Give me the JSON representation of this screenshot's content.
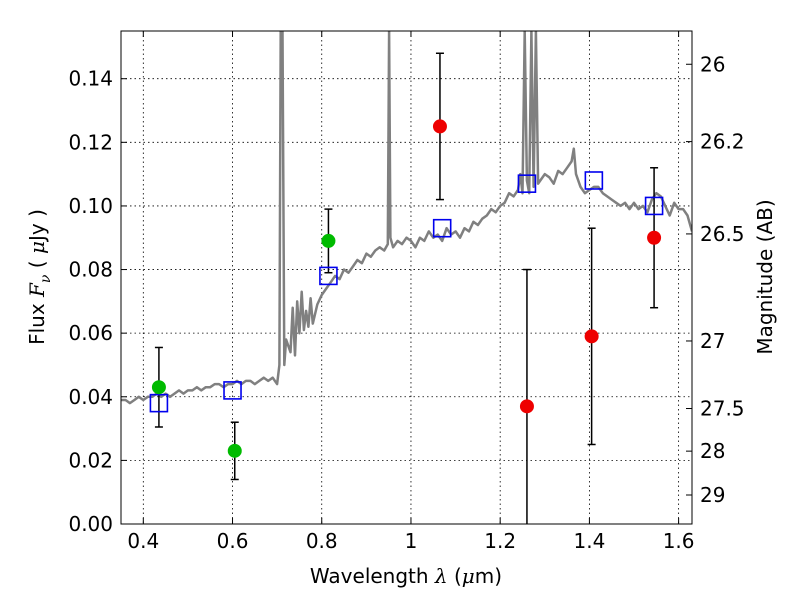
{
  "chart_data": {
    "type": "scatter",
    "title": "",
    "xlabel": "Wavelength  λ (μm)",
    "ylabel": "Flux  F_ν  ( μJy )",
    "ylabel_parts": {
      "pre": "Flux  ",
      "var": "F",
      "sub": "ν",
      "mid": "  (  ",
      "unit_var": "μ",
      "post": "Jy )"
    },
    "xlabel_parts": {
      "pre": "Wavelength  ",
      "var": "λ",
      "mid": " (",
      "unit_var": "μ",
      "post": "m)"
    },
    "ylabel_right": "Magnitude (AB)",
    "xlim": [
      0.35,
      1.63
    ],
    "ylim": [
      0.0,
      0.155
    ],
    "grid": true,
    "x_ticks": [
      {
        "value": 0.4,
        "label": "0.4"
      },
      {
        "value": 0.6,
        "label": "0.6"
      },
      {
        "value": 0.8,
        "label": "0.8"
      },
      {
        "value": 1.0,
        "label": "1"
      },
      {
        "value": 1.2,
        "label": "1.2"
      },
      {
        "value": 1.4,
        "label": "1.4"
      },
      {
        "value": 1.6,
        "label": "1.6"
      }
    ],
    "y_ticks": [
      {
        "value": 0.0,
        "label": "0.00"
      },
      {
        "value": 0.02,
        "label": "0.02"
      },
      {
        "value": 0.04,
        "label": "0.04"
      },
      {
        "value": 0.06,
        "label": "0.06"
      },
      {
        "value": 0.08,
        "label": "0.08"
      },
      {
        "value": 0.1,
        "label": "0.10"
      },
      {
        "value": 0.12,
        "label": "0.12"
      },
      {
        "value": 0.14,
        "label": "0.14"
      }
    ],
    "right_ticks": [
      {
        "value": 26.0,
        "label": "26"
      },
      {
        "value": 26.2,
        "label": "26.2"
      },
      {
        "value": 26.5,
        "label": "26.5"
      },
      {
        "value": 27.0,
        "label": "27"
      },
      {
        "value": 27.5,
        "label": "27.5"
      },
      {
        "value": 28.0,
        "label": "28"
      },
      {
        "value": 29.0,
        "label": "29"
      }
    ],
    "ab_zeropoint_ujy_mag": 23.9,
    "colors": {
      "model": "#808080",
      "green": "#00bb00",
      "red": "#ee0000",
      "blue": "#0000ee",
      "errorbar": "#000000"
    },
    "model_spectrum": {
      "x": [
        0.35,
        0.36,
        0.37,
        0.38,
        0.39,
        0.4,
        0.41,
        0.42,
        0.43,
        0.44,
        0.45,
        0.46,
        0.47,
        0.48,
        0.49,
        0.5,
        0.51,
        0.52,
        0.53,
        0.54,
        0.55,
        0.56,
        0.57,
        0.58,
        0.59,
        0.6,
        0.61,
        0.62,
        0.63,
        0.64,
        0.65,
        0.66,
        0.67,
        0.68,
        0.69,
        0.7,
        0.705,
        0.708,
        0.712,
        0.716,
        0.72,
        0.73,
        0.735,
        0.74,
        0.745,
        0.75,
        0.755,
        0.76,
        0.765,
        0.77,
        0.775,
        0.78,
        0.79,
        0.8,
        0.81,
        0.82,
        0.83,
        0.84,
        0.85,
        0.86,
        0.87,
        0.88,
        0.89,
        0.9,
        0.91,
        0.92,
        0.93,
        0.94,
        0.948,
        0.951,
        0.954,
        0.96,
        0.97,
        0.98,
        0.99,
        1.0,
        1.01,
        1.02,
        1.03,
        1.04,
        1.05,
        1.06,
        1.07,
        1.08,
        1.09,
        1.1,
        1.11,
        1.12,
        1.13,
        1.14,
        1.15,
        1.16,
        1.17,
        1.18,
        1.19,
        1.2,
        1.21,
        1.22,
        1.23,
        1.24,
        1.245,
        1.25,
        1.255,
        1.26,
        1.265,
        1.27,
        1.275,
        1.28,
        1.285,
        1.29,
        1.3,
        1.31,
        1.32,
        1.33,
        1.34,
        1.35,
        1.36,
        1.365,
        1.37,
        1.38,
        1.39,
        1.4,
        1.41,
        1.42,
        1.43,
        1.44,
        1.45,
        1.46,
        1.47,
        1.48,
        1.49,
        1.5,
        1.51,
        1.52,
        1.53,
        1.54,
        1.55,
        1.56,
        1.57,
        1.58,
        1.59,
        1.6,
        1.61,
        1.62,
        1.63
      ],
      "y": [
        0.039,
        0.039,
        0.038,
        0.039,
        0.04,
        0.039,
        0.04,
        0.04,
        0.041,
        0.04,
        0.041,
        0.04,
        0.041,
        0.042,
        0.041,
        0.042,
        0.042,
        0.043,
        0.042,
        0.043,
        0.043,
        0.044,
        0.044,
        0.043,
        0.044,
        0.044,
        0.045,
        0.044,
        0.045,
        0.045,
        0.044,
        0.045,
        0.046,
        0.045,
        0.046,
        0.044,
        0.05,
        0.155,
        0.155,
        0.05,
        0.058,
        0.054,
        0.068,
        0.053,
        0.07,
        0.06,
        0.073,
        0.061,
        0.067,
        0.062,
        0.071,
        0.063,
        0.069,
        0.072,
        0.074,
        0.076,
        0.078,
        0.077,
        0.08,
        0.079,
        0.081,
        0.083,
        0.082,
        0.085,
        0.084,
        0.086,
        0.087,
        0.086,
        0.088,
        0.155,
        0.09,
        0.087,
        0.089,
        0.088,
        0.09,
        0.089,
        0.087,
        0.09,
        0.089,
        0.092,
        0.09,
        0.091,
        0.089,
        0.093,
        0.091,
        0.092,
        0.09,
        0.093,
        0.092,
        0.095,
        0.094,
        0.096,
        0.097,
        0.099,
        0.098,
        0.1,
        0.101,
        0.104,
        0.103,
        0.105,
        0.11,
        0.104,
        0.155,
        0.108,
        0.104,
        0.155,
        0.106,
        0.155,
        0.107,
        0.108,
        0.11,
        0.109,
        0.107,
        0.111,
        0.11,
        0.112,
        0.114,
        0.118,
        0.11,
        0.106,
        0.104,
        0.105,
        0.106,
        0.106,
        0.104,
        0.103,
        0.102,
        0.101,
        0.1,
        0.101,
        0.099,
        0.101,
        0.099,
        0.1,
        0.098,
        0.102,
        0.104,
        0.103,
        0.1,
        0.097,
        0.101,
        0.099,
        0.099,
        0.097,
        0.092
      ]
    },
    "green_points": [
      {
        "x": 0.435,
        "y": 0.043,
        "yerr_lo": 0.0125,
        "yerr_hi": 0.0125
      },
      {
        "x": 0.605,
        "y": 0.023,
        "yerr_lo": 0.009,
        "yerr_hi": 0.009
      },
      {
        "x": 0.815,
        "y": 0.089,
        "yerr_lo": 0.01,
        "yerr_hi": 0.01
      }
    ],
    "red_points": [
      {
        "x": 1.065,
        "y": 0.125,
        "yerr_lo": 0.023,
        "yerr_hi": 0.023
      },
      {
        "x": 1.26,
        "y": 0.037,
        "yerr_lo": 0.043,
        "yerr_hi": 0.043
      },
      {
        "x": 1.405,
        "y": 0.059,
        "yerr_lo": 0.034,
        "yerr_hi": 0.034
      },
      {
        "x": 1.545,
        "y": 0.09,
        "yerr_lo": 0.022,
        "yerr_hi": 0.022
      }
    ],
    "model_photometry_squares": [
      {
        "x": 0.435,
        "y": 0.038
      },
      {
        "x": 0.6,
        "y": 0.042
      },
      {
        "x": 0.815,
        "y": 0.078
      },
      {
        "x": 1.07,
        "y": 0.093
      },
      {
        "x": 1.26,
        "y": 0.107
      },
      {
        "x": 1.41,
        "y": 0.108
      },
      {
        "x": 1.545,
        "y": 0.1
      }
    ]
  }
}
